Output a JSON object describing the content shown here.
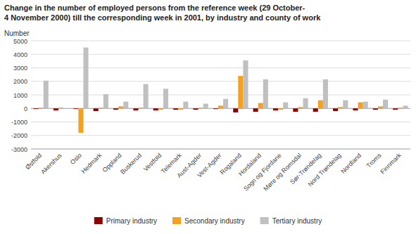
{
  "chart_data": {
    "type": "bar",
    "title": "Change in the number of employed persons from the reference week (29 October-\n4 November 2000) till the corresponding week in 2001, by industry and county of work",
    "ylabel": "Number",
    "categories": [
      "Østfold",
      "Akershus",
      "Oslo",
      "Hedmark",
      "Oppland",
      "Buskerud",
      "Vestfold",
      "Telemark",
      "Aust-Agder",
      "Vest-Agder",
      "Rogaland",
      "Hordaland",
      "Sogn og Fjordane",
      "Møre og Romsdal",
      "Sør-Trøndelag",
      "Nord Trøndelag",
      "Nordland",
      "Troms",
      "Finnmark"
    ],
    "series": [
      {
        "name": "Primary industry",
        "color": "#8B0000",
        "values": [
          -50,
          -150,
          -50,
          -200,
          -100,
          -150,
          -150,
          -100,
          -100,
          -50,
          -300,
          -250,
          -150,
          -250,
          -250,
          -200,
          -150,
          -100,
          -100
        ]
      },
      {
        "name": "Secondary industry",
        "color": "#F4A020",
        "values": [
          50,
          50,
          -1800,
          50,
          150,
          50,
          -100,
          -100,
          50,
          200,
          2400,
          400,
          -100,
          100,
          600,
          100,
          450,
          150,
          50
        ]
      },
      {
        "name": "Tertiary industry",
        "color": "#C0C0C0",
        "values": [
          2050,
          0,
          4500,
          1050,
          500,
          1800,
          1450,
          500,
          350,
          700,
          3550,
          2150,
          450,
          750,
          2150,
          600,
          500,
          650,
          200
        ]
      }
    ],
    "ylim": [
      -3000,
      5000
    ],
    "yticks": [
      -3000,
      -2000,
      -1000,
      0,
      1000,
      2000,
      3000,
      4000,
      5000
    ],
    "grid": true,
    "legend": "bottom"
  }
}
